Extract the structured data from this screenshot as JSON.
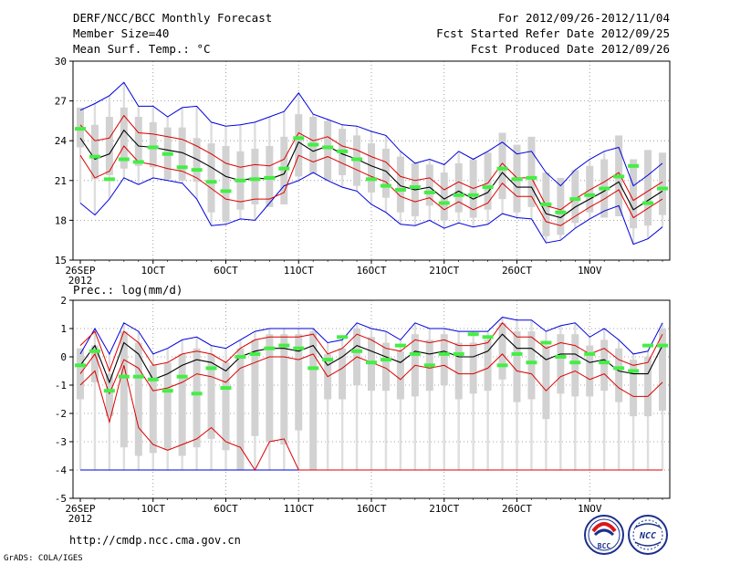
{
  "header": {
    "title": "DERF/NCC/BCC Monthly Forecast",
    "member_size": "Member Size=40",
    "variable": "Mean Surf. Temp.: °C",
    "period": "For 2012/09/26-2012/11/04",
    "refer_date": "Fcst Started Refer Date 2012/09/25",
    "produced_date": "Fcst Produced Date 2012/09/26"
  },
  "footer": {
    "url": "http://cmdp.ncc.cma.gov.cn",
    "credit": "GrADS: COLA/IGES",
    "logo_left_text": "BCC",
    "logo_right_text": "NCC"
  },
  "chart_data": [
    {
      "type": "line",
      "title": "Mean Surf. Temp.: °C",
      "ylim": [
        15,
        30
      ],
      "yticks": [
        "15",
        "18",
        "21",
        "24",
        "27",
        "30"
      ],
      "xlim": [
        0,
        40
      ],
      "xticks": [
        {
          "day": 0,
          "label": "26SEP",
          "sub": "2012"
        },
        {
          "day": 5,
          "label": "1OCT"
        },
        {
          "day": 10,
          "label": "6OCT"
        },
        {
          "day": 15,
          "label": "11OCT"
        },
        {
          "day": 20,
          "label": "16OCT"
        },
        {
          "day": 25,
          "label": "21OCT"
        },
        {
          "day": 30,
          "label": "26OCT"
        },
        {
          "day": 35,
          "label": "1NOV"
        }
      ],
      "grid": true,
      "colors": {
        "box": "#d2d2d2",
        "median": "#44ee44",
        "mean": "#000000",
        "spread": "#dd0000",
        "envelope": "#0000dd"
      },
      "mean": [
        24.2,
        22.6,
        23.0,
        24.8,
        23.6,
        23.5,
        23.3,
        23.1,
        22.6,
        22.0,
        21.3,
        21.0,
        21.2,
        21.1,
        21.5,
        23.9,
        23.2,
        23.6,
        23.0,
        22.6,
        22.1,
        21.7,
        20.6,
        20.3,
        20.5,
        19.6,
        20.2,
        19.6,
        20.1,
        21.6,
        20.5,
        20.5,
        18.5,
        18.2,
        19.0,
        19.6,
        20.2,
        20.9,
        18.8,
        19.5,
        20.2
      ],
      "upper": [
        25.2,
        24.0,
        24.2,
        25.9,
        24.6,
        24.5,
        24.3,
        24.1,
        23.6,
        23.0,
        22.3,
        22.0,
        22.2,
        22.1,
        22.6,
        24.6,
        24.0,
        24.3,
        23.6,
        23.3,
        22.8,
        22.4,
        21.3,
        21.0,
        21.2,
        20.3,
        20.9,
        20.4,
        20.8,
        22.3,
        21.2,
        21.2,
        19.1,
        18.8,
        19.6,
        20.3,
        20.9,
        21.6,
        19.5,
        20.2,
        20.9
      ],
      "lower": [
        22.9,
        21.2,
        21.7,
        23.6,
        22.4,
        22.2,
        21.9,
        21.7,
        21.2,
        20.4,
        19.6,
        19.4,
        19.6,
        19.6,
        20.1,
        22.9,
        22.4,
        22.8,
        22.3,
        21.8,
        21.3,
        20.9,
        19.8,
        19.4,
        19.7,
        18.8,
        19.4,
        18.8,
        19.3,
        20.8,
        19.8,
        19.8,
        17.9,
        17.6,
        18.3,
        19.0,
        19.6,
        20.3,
        18.2,
        18.9,
        19.6
      ],
      "max": [
        26.3,
        26.8,
        27.4,
        28.4,
        26.6,
        26.6,
        25.8,
        26.5,
        26.6,
        25.4,
        25.1,
        25.2,
        25.4,
        25.8,
        26.2,
        27.6,
        26.0,
        25.6,
        25.2,
        25.1,
        24.7,
        24.4,
        23.2,
        22.3,
        22.6,
        22.2,
        23.2,
        22.6,
        23.2,
        23.9,
        23.0,
        23.2,
        21.6,
        20.6,
        21.8,
        22.6,
        23.2,
        23.5,
        20.6,
        21.4,
        22.3
      ],
      "min": [
        19.3,
        18.4,
        19.6,
        21.2,
        20.7,
        21.2,
        21.0,
        20.8,
        19.6,
        17.6,
        17.7,
        18.1,
        18.0,
        19.3,
        20.6,
        21.0,
        21.6,
        21.0,
        20.5,
        20.2,
        19.2,
        18.6,
        17.7,
        17.6,
        18.0,
        17.4,
        17.8,
        17.5,
        17.7,
        18.5,
        18.2,
        18.1,
        16.3,
        16.5,
        17.4,
        18.1,
        18.7,
        19.1,
        16.2,
        16.6,
        17.5
      ],
      "q_hi": [
        26.5,
        25.2,
        25.8,
        26.5,
        25.8,
        25.4,
        25.0,
        25.0,
        24.2,
        23.8,
        23.6,
        23.2,
        23.4,
        23.6,
        24.3,
        26.0,
        25.8,
        25.5,
        24.9,
        24.4,
        23.8,
        23.4,
        22.8,
        22.3,
        22.2,
        21.6,
        22.3,
        22.6,
        23.1,
        24.6,
        23.7,
        24.3,
        21.6,
        21.2,
        21.8,
        22.1,
        22.6,
        24.4,
        22.6,
        23.3,
        23.1
      ],
      "q_lo": [
        23.5,
        21.1,
        21.4,
        21.9,
        22.1,
        22.0,
        21.1,
        21.0,
        20.9,
        18.6,
        17.9,
        18.8,
        19.2,
        19.0,
        19.2,
        21.3,
        21.5,
        21.0,
        21.4,
        20.6,
        20.1,
        19.7,
        18.6,
        18.3,
        19.1,
        18.0,
        18.6,
        18.2,
        18.8,
        19.6,
        18.6,
        19.0,
        16.8,
        16.9,
        17.8,
        18.6,
        18.2,
        18.3,
        17.4,
        17.6,
        18.4
      ],
      "median": [
        24.9,
        22.8,
        21.1,
        22.6,
        22.4,
        23.5,
        23.0,
        22.0,
        21.8,
        20.9,
        20.2,
        21.0,
        21.1,
        21.2,
        21.9,
        24.2,
        23.7,
        23.5,
        23.2,
        22.6,
        21.1,
        20.6,
        20.3,
        20.5,
        20.1,
        19.3,
        19.9,
        19.9,
        20.5,
        21.9,
        21.1,
        21.2,
        19.2,
        18.6,
        19.6,
        19.9,
        20.4,
        21.3,
        22.1,
        19.3,
        20.4
      ]
    },
    {
      "type": "line",
      "title": "Prec.: log(mm/d)",
      "ylim": [
        -5,
        2
      ],
      "yticks": [
        "-5",
        "-4",
        "-3",
        "-2",
        "-1",
        "0",
        "1",
        "2"
      ],
      "xlim": [
        0,
        40
      ],
      "xticks": [
        {
          "day": 0,
          "label": "26SEP",
          "sub": "2012"
        },
        {
          "day": 5,
          "label": "1OCT"
        },
        {
          "day": 10,
          "label": "6OCT"
        },
        {
          "day": 15,
          "label": "11OCT"
        },
        {
          "day": 20,
          "label": "16OCT"
        },
        {
          "day": 25,
          "label": "21OCT"
        },
        {
          "day": 30,
          "label": "26OCT"
        },
        {
          "day": 35,
          "label": "1NOV"
        }
      ],
      "grid": true,
      "colors": {
        "box": "#d2d2d2",
        "median": "#44ee44",
        "mean": "#000000",
        "spread": "#dd0000",
        "envelope": "#0000dd"
      },
      "mean": [
        -0.3,
        0.4,
        -0.9,
        0.5,
        0.1,
        -0.8,
        -0.6,
        -0.3,
        -0.1,
        -0.2,
        -0.5,
        0.0,
        0.2,
        0.3,
        0.3,
        0.2,
        0.4,
        -0.3,
        0.0,
        0.4,
        0.2,
        0.0,
        -0.2,
        0.2,
        0.1,
        0.2,
        0.0,
        0.0,
        0.2,
        0.8,
        0.3,
        0.3,
        -0.1,
        0.1,
        0.1,
        -0.2,
        -0.1,
        -0.5,
        -0.6,
        -0.6,
        0.4
      ],
      "upper": [
        0.4,
        0.9,
        -0.5,
        0.9,
        0.5,
        -0.3,
        -0.2,
        0.1,
        0.2,
        0.1,
        -0.2,
        0.3,
        0.6,
        0.7,
        0.7,
        0.7,
        0.8,
        0.1,
        0.3,
        0.8,
        0.6,
        0.3,
        0.2,
        0.6,
        0.5,
        0.6,
        0.4,
        0.4,
        0.5,
        1.2,
        0.7,
        0.7,
        0.3,
        0.5,
        0.4,
        0.1,
        0.3,
        -0.1,
        -0.3,
        -0.2,
        0.8
      ],
      "lower": [
        -1.0,
        -0.5,
        -2.3,
        -0.3,
        -2.5,
        -3.1,
        -3.3,
        -3.1,
        -2.9,
        -2.5,
        -3.0,
        -3.2,
        -4.0,
        -3.0,
        -2.9,
        -4.0,
        -4.0,
        -4.0,
        -4.0,
        -4.0,
        -4.0,
        -4.0,
        -4.0,
        -4.0,
        -4.0,
        -4.0,
        -4.0,
        -4.0,
        -4.0,
        -4.0,
        -4.0,
        -4.0,
        -4.0,
        -4.0,
        -4.0,
        -4.0,
        -4.0,
        -4.0,
        -4.0,
        -4.0,
        -4.0
      ],
      "lower2": [
        -0.6,
        0.1,
        -1.3,
        -0.1,
        -0.4,
        -1.2,
        -1.1,
        -0.9,
        -0.6,
        -0.7,
        -0.9,
        -0.4,
        -0.2,
        0.0,
        0.0,
        -0.1,
        0.1,
        -0.7,
        -0.4,
        0.0,
        -0.2,
        -0.4,
        -0.8,
        -0.3,
        -0.4,
        -0.3,
        -0.6,
        -0.6,
        -0.4,
        0.1,
        -0.5,
        -0.6,
        -1.2,
        -0.7,
        -0.5,
        -0.8,
        -0.6,
        -1.1,
        -1.4,
        -1.4,
        -0.9
      ],
      "max": [
        0.1,
        1.0,
        0.1,
        1.2,
        0.9,
        0.1,
        0.3,
        0.6,
        0.7,
        0.4,
        0.3,
        0.6,
        0.9,
        1.0,
        1.0,
        1.0,
        1.0,
        0.5,
        0.6,
        1.2,
        1.0,
        0.9,
        0.6,
        1.2,
        1.0,
        1.0,
        0.9,
        0.9,
        0.9,
        1.4,
        1.3,
        1.3,
        0.9,
        1.1,
        1.2,
        0.7,
        1.0,
        0.6,
        0.1,
        0.2,
        1.2
      ],
      "min": [
        -4.0,
        -4.0,
        -4.0,
        -4.0,
        -4.0,
        -4.0,
        -4.0,
        -4.0,
        -4.0,
        -4.0,
        -4.0,
        -4.0,
        -4.0,
        -4.0,
        -4.0,
        -4.0,
        -4.0,
        -4.0,
        -4.0,
        -4.0,
        -4.0,
        -4.0,
        -4.0,
        -4.0,
        -4.0,
        -4.0,
        -4.0,
        -4.0,
        -4.0,
        -4.0,
        -4.0,
        -4.0,
        -4.0,
        -4.0,
        -4.0,
        -4.0,
        -4.0,
        -4.0,
        -4.0,
        -4.0,
        -4.0
      ],
      "q_hi": [
        0.3,
        0.4,
        -0.6,
        0.9,
        0.5,
        -0.3,
        -0.2,
        0.1,
        0.3,
        0.1,
        -0.2,
        0.3,
        0.6,
        0.8,
        0.8,
        0.8,
        0.9,
        0.1,
        0.3,
        1.0,
        0.7,
        0.5,
        0.2,
        0.8,
        0.6,
        0.8,
        0.5,
        0.5,
        0.6,
        1.2,
        0.9,
        0.9,
        0.4,
        0.8,
        0.8,
        0.4,
        0.6,
        0.3,
        -0.1,
        0.0,
        1.0
      ],
      "q_lo": [
        -1.5,
        -0.9,
        -2.1,
        -3.2,
        -3.5,
        -3.4,
        -3.3,
        -3.5,
        -3.2,
        -2.9,
        -3.3,
        -4.0,
        -2.8,
        -3.0,
        -3.1,
        -2.6,
        -4.0,
        -1.5,
        -1.5,
        -1.0,
        -1.2,
        -1.2,
        -1.5,
        -1.4,
        -1.2,
        -1.0,
        -1.5,
        -1.3,
        -1.2,
        -0.8,
        -1.6,
        -1.5,
        -2.2,
        -1.3,
        -1.4,
        -1.4,
        -1.2,
        -1.6,
        -2.1,
        -2.1,
        -1.9
      ],
      "median": [
        -0.3,
        0.2,
        -1.2,
        -0.7,
        -0.7,
        -0.8,
        -1.2,
        -0.7,
        -1.3,
        -0.4,
        -1.1,
        0.0,
        0.1,
        0.3,
        0.4,
        0.3,
        -0.4,
        -0.1,
        0.7,
        0.2,
        -0.2,
        -0.1,
        0.4,
        0.1,
        -0.3,
        0.1,
        0.1,
        0.8,
        0.7,
        -0.3,
        0.1,
        -0.2,
        0.5,
        0.0,
        -0.2,
        0.1,
        -0.2,
        -0.4,
        -0.5,
        0.4,
        0.4
      ]
    }
  ]
}
